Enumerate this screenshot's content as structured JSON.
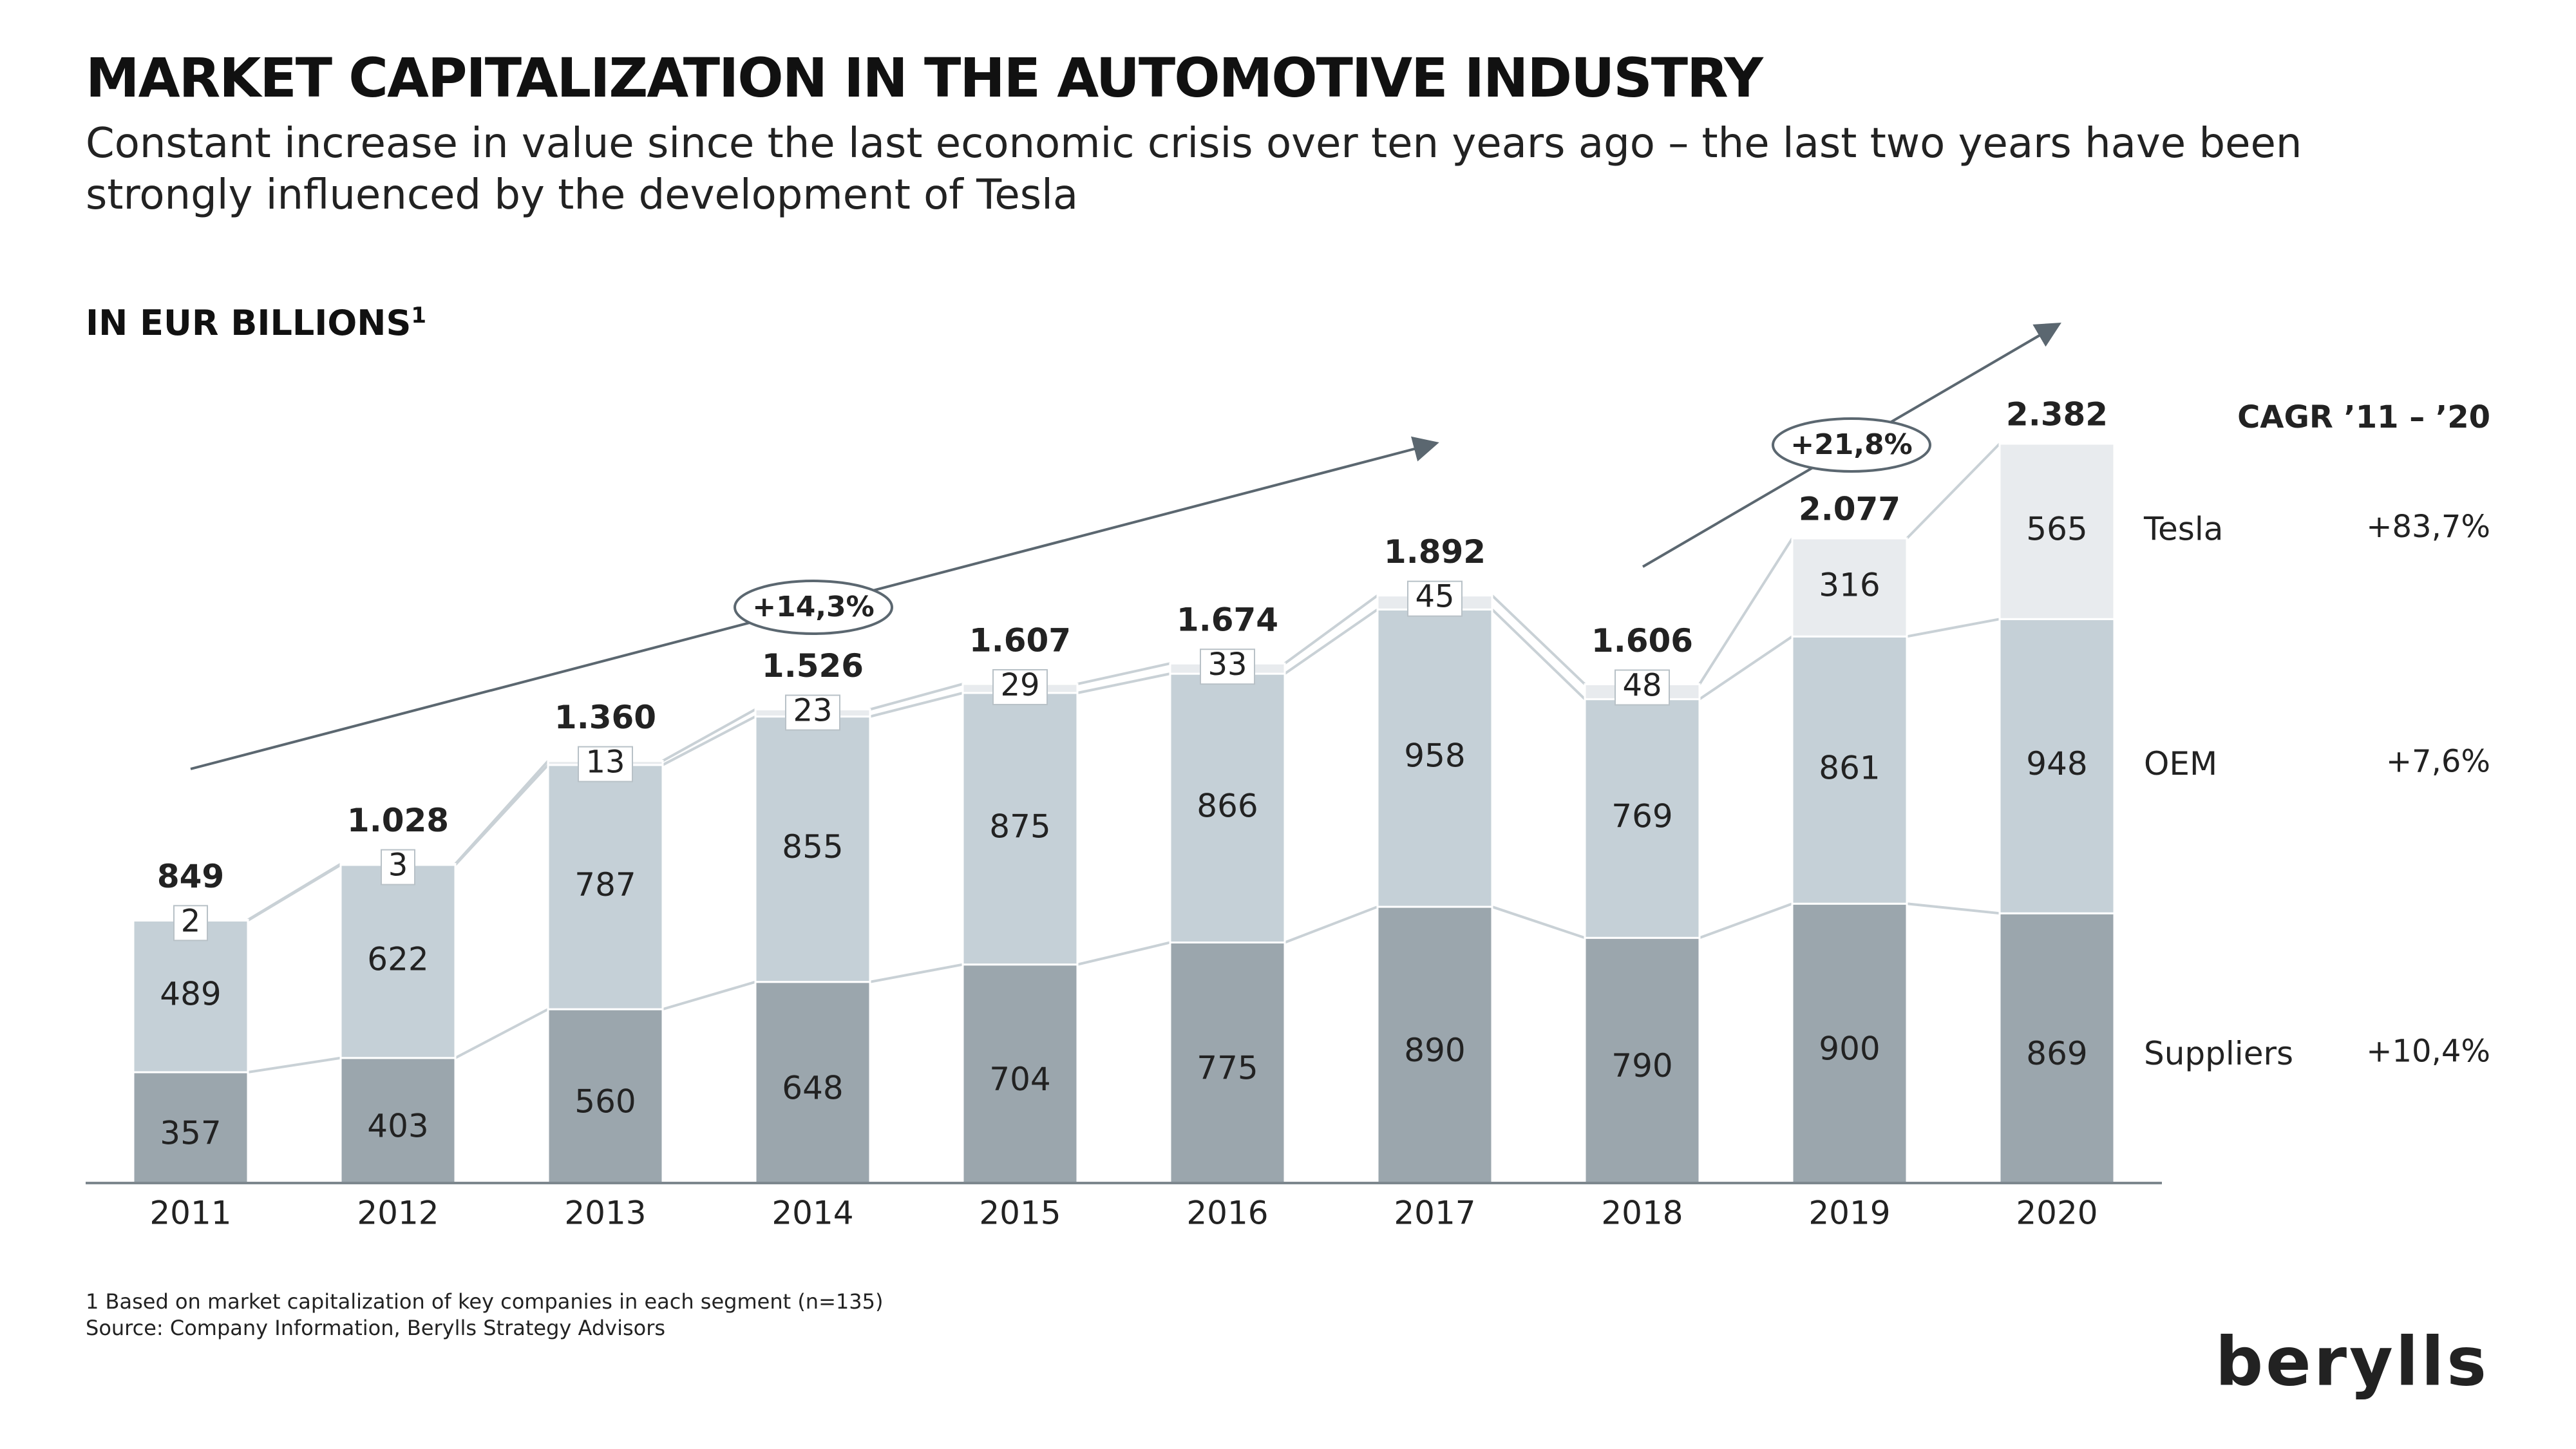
{
  "chart_data": {
    "type": "stacked_bar",
    "title": "MARKET CAPITALIZATION IN THE AUTOMOTIVE INDUSTRY",
    "subtitle": "Constant increase in value since the last economic crisis over ten years ago – the last two years have been strongly influenced by the development of Tesla",
    "unit_label": "IN EUR BILLIONS",
    "unit_footnote_mark": "1",
    "categories": [
      "2011",
      "2012",
      "2013",
      "2014",
      "2015",
      "2016",
      "2017",
      "2018",
      "2019",
      "2020"
    ],
    "series": [
      {
        "name": "Suppliers",
        "color": "#9ba6ad",
        "cagr": "+10,4%",
        "values": [
          357,
          403,
          560,
          648,
          704,
          775,
          890,
          790,
          900,
          869
        ]
      },
      {
        "name": "OEM",
        "color": "#c5d0d7",
        "cagr": "+7,6%",
        "values": [
          489,
          622,
          787,
          855,
          875,
          866,
          958,
          769,
          861,
          948
        ]
      },
      {
        "name": "Tesla",
        "color": "#e8ebee",
        "cagr": "+83,7%",
        "values": [
          2,
          3,
          13,
          23,
          29,
          33,
          45,
          48,
          316,
          565
        ]
      }
    ],
    "totals": {
      "values": [
        849,
        1028,
        1360,
        1526,
        1607,
        1674,
        1892,
        1606,
        2077,
        2382
      ],
      "value_labels": [
        "849",
        "1.028",
        "1.360",
        "1.526",
        "1.607",
        "1.674",
        "1.892",
        "1.606",
        "2.077",
        "2.382"
      ]
    },
    "cagr_header": "CAGR ’11 – ’20",
    "annotations": [
      "+14,3%",
      "+21,8%"
    ],
    "footnote": "1 Based on market capitalization of key companies in each segment (n=135)",
    "source": "Source: Company Information, Berylls Strategy Advisors",
    "logo": "berylls"
  }
}
